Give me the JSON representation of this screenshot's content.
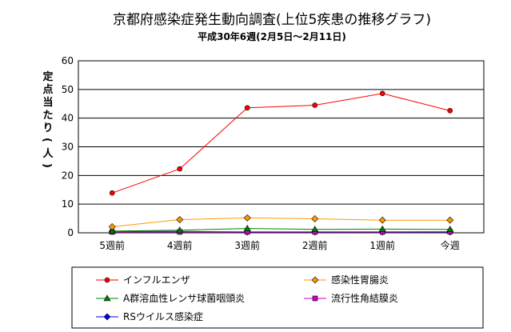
{
  "chart_data": {
    "type": "line",
    "title": "京都府感染症発生動向調査(上位5疾患の推移グラフ)",
    "subtitle": "平成30年6週(2月5日～2月11日)",
    "ylabel": "定点当たり(人)",
    "xlabel": "",
    "ylim": [
      0,
      60
    ],
    "yticks": [
      "0",
      "10",
      "20",
      "30",
      "40",
      "50",
      "60"
    ],
    "categories": [
      "5週前",
      "4週前",
      "3週前",
      "2週前",
      "1週前",
      "今週"
    ],
    "grid": true,
    "legend_position": "bottom",
    "series": [
      {
        "name": "インフルエンザ",
        "color": "#ff0000",
        "marker": "circle",
        "values": [
          13.9,
          22.3,
          43.6,
          44.5,
          48.6,
          42.6
        ]
      },
      {
        "name": "感染性胃腸炎",
        "color": "#ff9900",
        "marker": "diamond",
        "values": [
          2.1,
          4.6,
          5.2,
          4.9,
          4.4,
          4.4
        ]
      },
      {
        "name": "A群溶血性レンサ球菌咽頭炎",
        "color": "#008000",
        "marker": "triangle",
        "values": [
          0.6,
          0.9,
          1.5,
          1.2,
          1.3,
          1.2
        ]
      },
      {
        "name": "流行性角結膜炎",
        "color": "#cc00cc",
        "marker": "square",
        "values": [
          0.3,
          0.3,
          0.3,
          0.3,
          0.3,
          0.4
        ]
      },
      {
        "name": "RSウイルス感染症",
        "color": "#0000ff",
        "marker": "diamond",
        "values": [
          0.5,
          0.5,
          0.3,
          0.3,
          0.3,
          0.3
        ]
      }
    ]
  }
}
